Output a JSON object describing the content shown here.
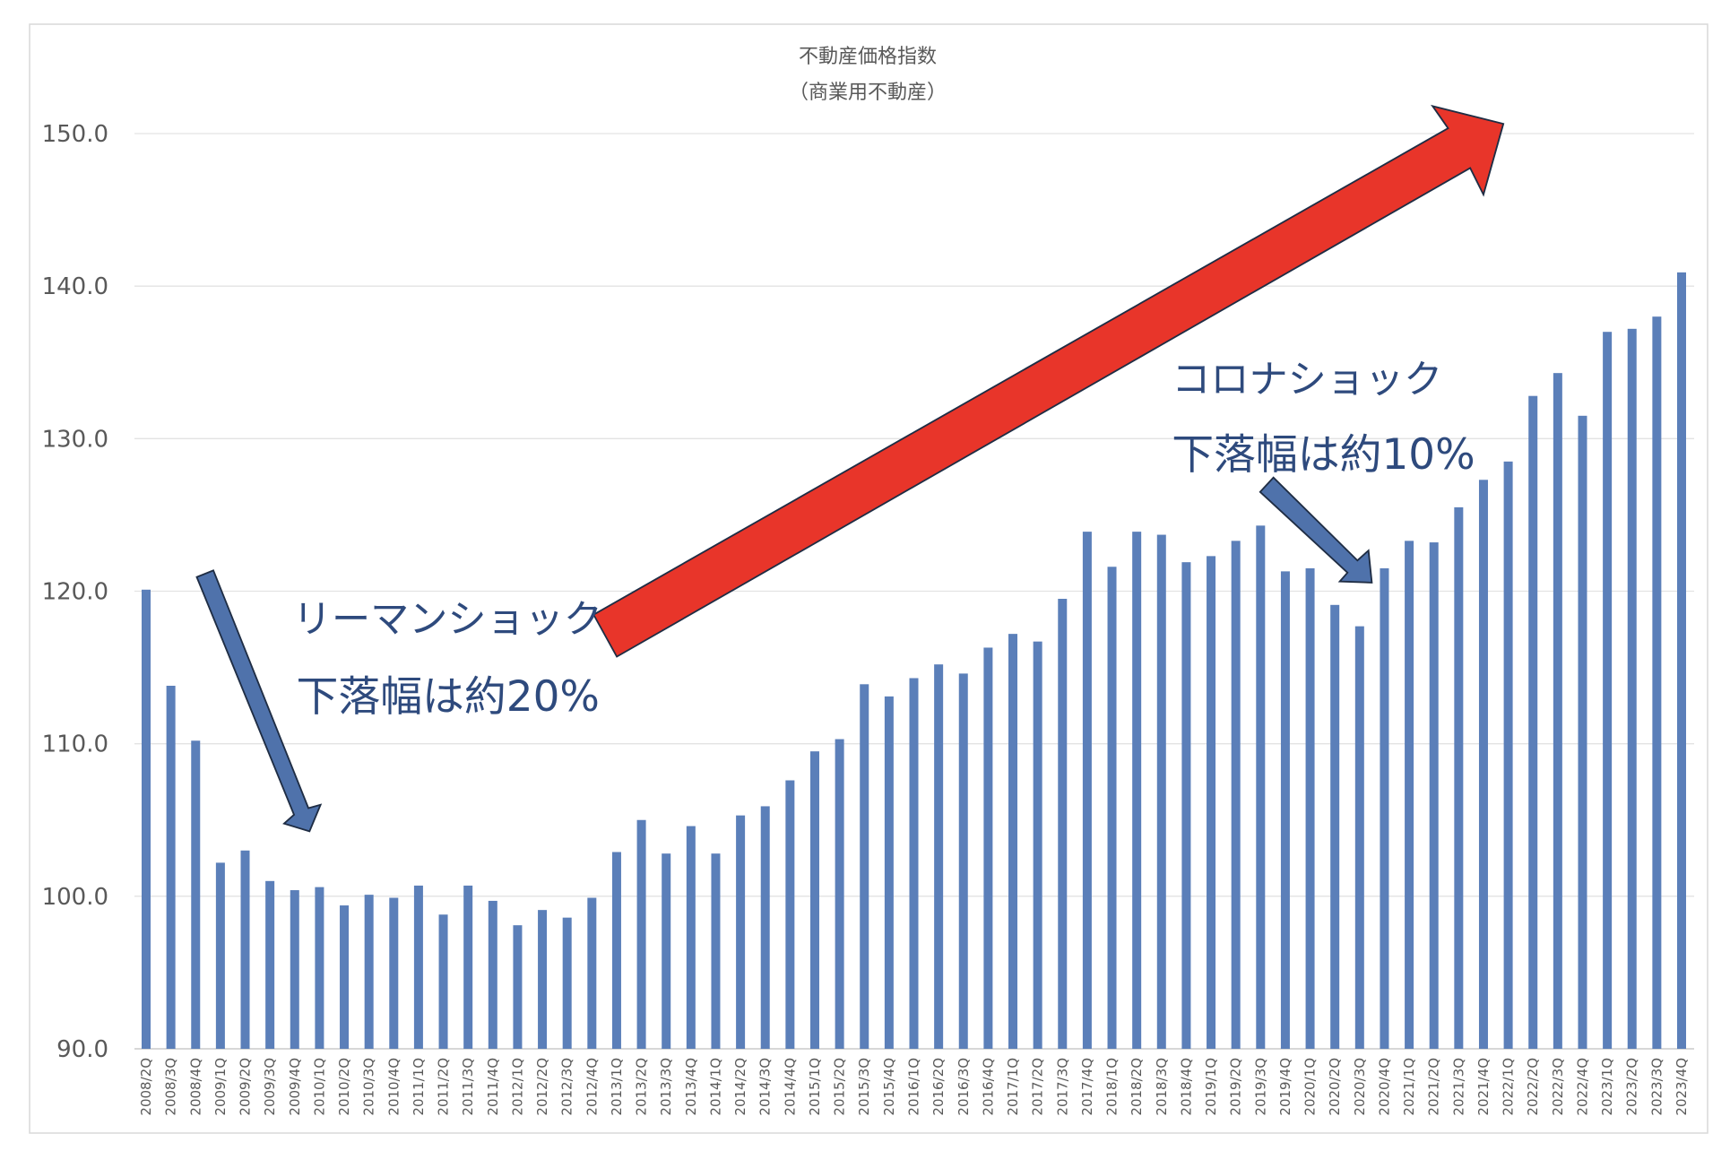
{
  "chart_data": {
    "type": "bar",
    "title": "不動産価格指数",
    "subtitle": "（商業用不動産）",
    "xlabel": "",
    "ylabel": "",
    "ylim": [
      90,
      150
    ],
    "yticks": [
      "90.0",
      "100.0",
      "110.0",
      "120.0",
      "130.0",
      "140.0",
      "150.0"
    ],
    "grid": true,
    "bar_color": "#5b7fb9",
    "categories": [
      "2008/2Q",
      "2008/3Q",
      "2008/4Q",
      "2009/1Q",
      "2009/2Q",
      "2009/3Q",
      "2009/4Q",
      "2010/1Q",
      "2010/2Q",
      "2010/3Q",
      "2010/4Q",
      "2011/1Q",
      "2011/2Q",
      "2011/3Q",
      "2011/4Q",
      "2012/1Q",
      "2012/2Q",
      "2012/3Q",
      "2012/4Q",
      "2013/1Q",
      "2013/2Q",
      "2013/3Q",
      "2013/4Q",
      "2014/1Q",
      "2014/2Q",
      "2014/3Q",
      "2014/4Q",
      "2015/1Q",
      "2015/2Q",
      "2015/3Q",
      "2015/4Q",
      "2016/1Q",
      "2016/2Q",
      "2016/3Q",
      "2016/4Q",
      "2017/1Q",
      "2017/2Q",
      "2017/3Q",
      "2017/4Q",
      "2018/1Q",
      "2018/2Q",
      "2018/3Q",
      "2018/4Q",
      "2019/1Q",
      "2019/2Q",
      "2019/3Q",
      "2019/4Q",
      "2020/1Q",
      "2020/2Q",
      "2020/3Q",
      "2020/4Q",
      "2021/1Q",
      "2021/2Q",
      "2021/3Q",
      "2021/4Q",
      "2022/1Q",
      "2022/2Q",
      "2022/3Q",
      "2022/4Q",
      "2023/1Q",
      "2023/2Q",
      "2023/3Q",
      "2023/4Q"
    ],
    "values": [
      120.1,
      113.8,
      110.2,
      102.2,
      103.0,
      101.0,
      100.4,
      100.6,
      99.4,
      100.1,
      99.9,
      100.7,
      98.8,
      100.7,
      99.7,
      98.1,
      99.1,
      98.6,
      99.9,
      102.9,
      105.0,
      102.8,
      104.6,
      102.8,
      105.3,
      105.9,
      107.6,
      109.5,
      110.3,
      113.9,
      113.1,
      114.3,
      115.2,
      114.6,
      116.3,
      117.2,
      116.7,
      119.5,
      123.9,
      121.6,
      123.9,
      123.7,
      121.9,
      122.3,
      123.3,
      124.3,
      121.3,
      121.5,
      119.1,
      117.7,
      121.5,
      123.3,
      123.2,
      125.5,
      127.3,
      128.5,
      132.8,
      134.3,
      131.5,
      137.0,
      137.2,
      138.0,
      140.9
    ],
    "annotations": {
      "lehman_label": "リーマンショック",
      "lehman_drop": "下落幅は約20%",
      "corona_label": "コロナショック",
      "corona_drop": "下落幅は約10%",
      "up_arrow_color": "#e8352a",
      "down_arrow_color": "#4f72ab"
    }
  }
}
